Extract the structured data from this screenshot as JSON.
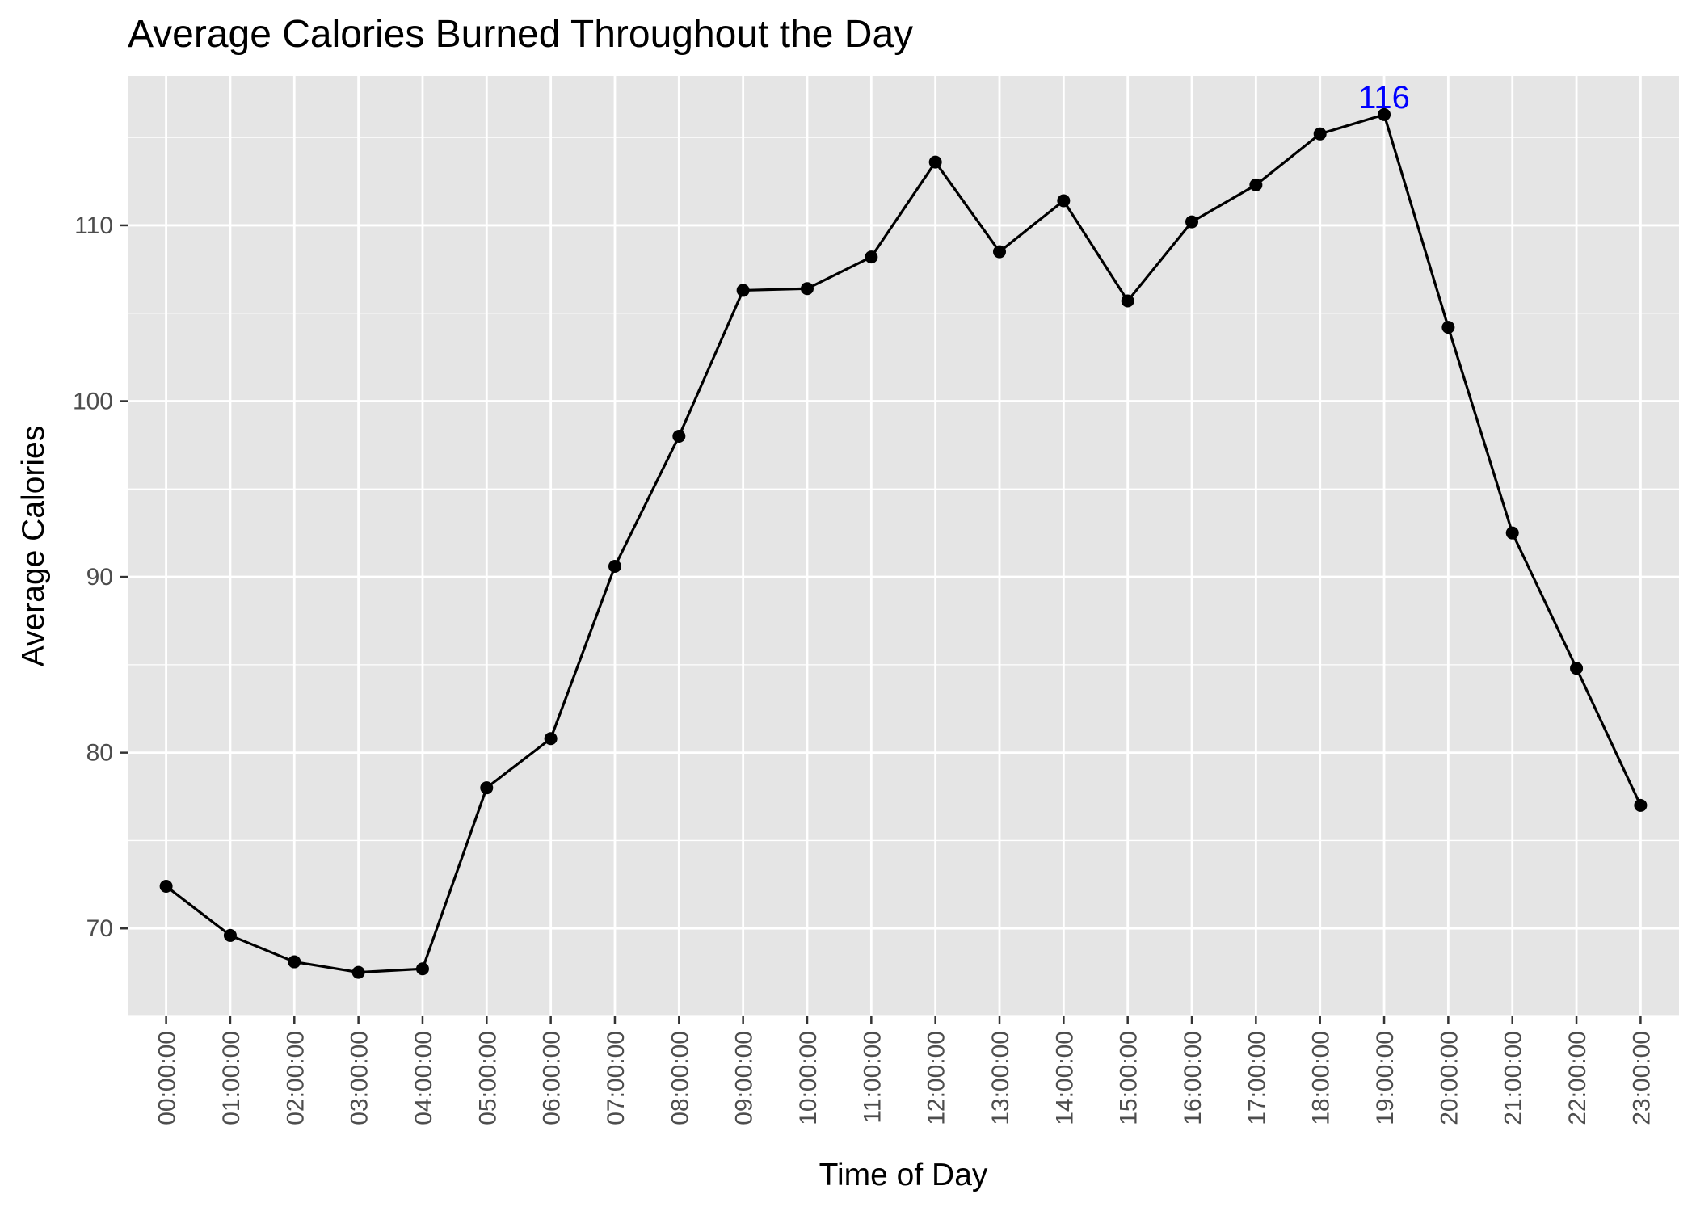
{
  "chart_data": {
    "type": "line",
    "title": "Average Calories Burned Throughout the Day",
    "xlabel": "Time of Day",
    "ylabel": "Average Calories",
    "ylim": [
      65,
      118.5
    ],
    "y_ticks": [
      70,
      80,
      90,
      100,
      110
    ],
    "grid": true,
    "legend": "none",
    "colors": {
      "panel_background": "#e5e5e5",
      "grid": "#ffffff",
      "line": "#000000",
      "point": "#000000",
      "annotation": "#0000ff",
      "tick_text": "#4d4d4d"
    },
    "categories": [
      "00:00:00",
      "01:00:00",
      "02:00:00",
      "03:00:00",
      "04:00:00",
      "05:00:00",
      "06:00:00",
      "07:00:00",
      "08:00:00",
      "09:00:00",
      "10:00:00",
      "11:00:00",
      "12:00:00",
      "13:00:00",
      "14:00:00",
      "15:00:00",
      "16:00:00",
      "17:00:00",
      "18:00:00",
      "19:00:00",
      "20:00:00",
      "21:00:00",
      "22:00:00",
      "23:00:00"
    ],
    "values": [
      72.4,
      69.6,
      68.1,
      67.5,
      67.7,
      78.0,
      80.8,
      90.6,
      98.0,
      106.3,
      106.4,
      108.2,
      113.6,
      108.5,
      111.4,
      105.7,
      110.2,
      112.3,
      115.2,
      116.3,
      104.2,
      92.5,
      84.8,
      77.0
    ],
    "annotations": [
      {
        "index": 19,
        "value": 116.3,
        "text": "116"
      }
    ]
  }
}
